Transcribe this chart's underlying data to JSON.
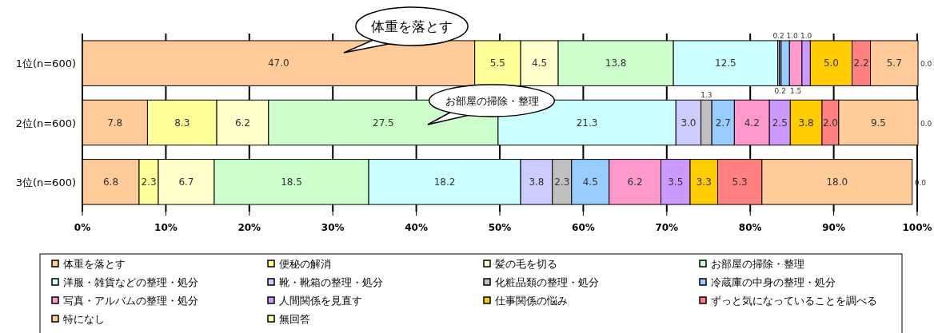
{
  "chart_data": {
    "type": "bar",
    "orientation": "horizontal",
    "stacked": true,
    "grid": "x",
    "legend": "bottom",
    "categories": [
      "1位(n=600)",
      "2位(n=600)",
      "3位(n=600)"
    ],
    "xlim": [
      0,
      100
    ],
    "xticks": [
      {
        "value": 0,
        "label": "0%"
      },
      {
        "value": 10,
        "label": "10%"
      },
      {
        "value": 20,
        "label": "20%"
      },
      {
        "value": 30,
        "label": "30%"
      },
      {
        "value": 40,
        "label": "40%"
      },
      {
        "value": 50,
        "label": "50%"
      },
      {
        "value": 60,
        "label": "60%"
      },
      {
        "value": 70,
        "label": "70%"
      },
      {
        "value": 80,
        "label": "80%"
      },
      {
        "value": 90,
        "label": "90%"
      },
      {
        "value": 100,
        "label": "100%"
      }
    ],
    "annotations": [
      "体重を落とす",
      "お部屋の掃除・整理"
    ],
    "series": [
      {
        "name": "体重を落とす",
        "color": "#ffcc99",
        "values": [
          47.0,
          7.8,
          6.8
        ],
        "value_labels": [
          "47.0",
          "7.8",
          "6.8"
        ]
      },
      {
        "name": "便秘の解消",
        "color": "#ffff99",
        "values": [
          5.5,
          8.3,
          2.3
        ],
        "value_labels": [
          "5.5",
          "8.3",
          "2.3"
        ]
      },
      {
        "name": "髪の毛を切る",
        "color": "#ffffcc",
        "values": [
          4.5,
          6.2,
          6.7
        ],
        "value_labels": [
          "4.5",
          "6.2",
          "6.7"
        ]
      },
      {
        "name": "お部屋の掃除・整理",
        "color": "#ccffcc",
        "values": [
          13.8,
          27.5,
          18.5
        ],
        "value_labels": [
          "13.8",
          "27.5",
          "18.5"
        ]
      },
      {
        "name": "洋服・雑貨などの整理・処分",
        "color": "#ccffff",
        "values": [
          12.5,
          21.3,
          18.2
        ],
        "value_labels": [
          "12.5",
          "21.3",
          "18.2"
        ]
      },
      {
        "name": "靴・靴箱の整理・処分",
        "color": "#ccccff",
        "values": [
          0.2,
          3.0,
          3.8
        ],
        "value_labels": [
          "0.2",
          "3.0",
          "3.8"
        ]
      },
      {
        "name": "化粧品類の整理・処分",
        "color": "#c0c0c0",
        "values": [
          0.2,
          1.3,
          2.3
        ],
        "value_labels": [
          "0.2",
          "1.3",
          "2.3"
        ]
      },
      {
        "name": "冷蔵庫の中身の整理・処分",
        "color": "#99ccff",
        "values": [
          1.0,
          2.7,
          4.5
        ],
        "value_labels": [
          "1.0",
          "2.7",
          "4.5"
        ]
      },
      {
        "name": "写真・アルバムの整理・処分",
        "color": "#ff99cc",
        "values": [
          1.5,
          4.2,
          6.2
        ],
        "value_labels": [
          "1.5",
          "4.2",
          "6.2"
        ]
      },
      {
        "name": "人間関係を見直す",
        "color": "#cc99ff",
        "values": [
          1.0,
          2.5,
          3.5
        ],
        "value_labels": [
          "1.0",
          "2.5",
          "3.5"
        ]
      },
      {
        "name": "仕事関係の悩み",
        "color": "#ffcc00",
        "values": [
          5.0,
          3.8,
          3.3
        ],
        "value_labels": [
          "5.0",
          "3.8",
          "3.3"
        ]
      },
      {
        "name": "ずっと気になっていることを調べる",
        "color": "#ff8080",
        "values": [
          2.2,
          2.0,
          5.3
        ],
        "value_labels": [
          "2.2",
          "2.0",
          "5.3"
        ]
      },
      {
        "name": "特になし",
        "color": "#ffcc99",
        "values": [
          5.7,
          9.5,
          18.0
        ],
        "value_labels": [
          "5.7",
          "9.5",
          "18.0"
        ]
      },
      {
        "name": "無回答",
        "color": "#ffff99",
        "values": [
          0.0,
          0.0,
          0.0
        ],
        "value_labels": [
          "0.0",
          "0.0",
          "0.0"
        ]
      }
    ]
  }
}
